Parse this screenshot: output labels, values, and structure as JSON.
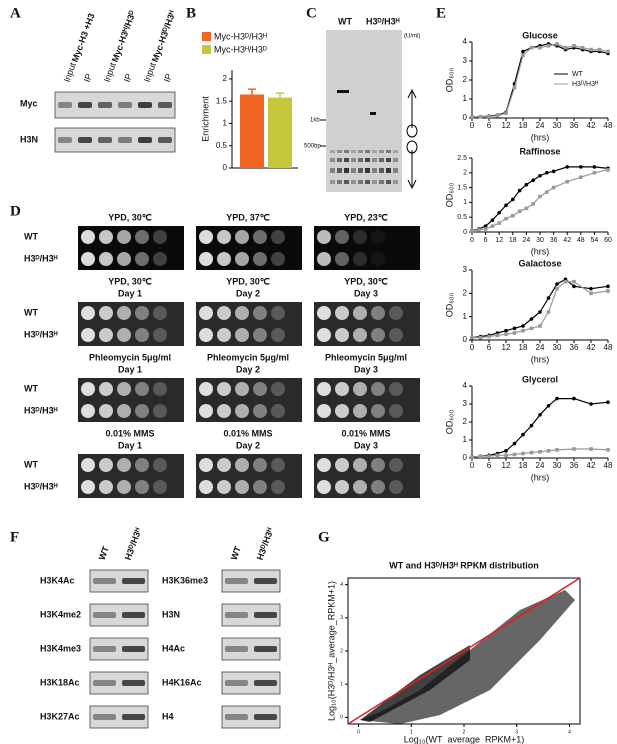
{
  "figure": {
    "panel_labels": [
      "A",
      "B",
      "C",
      "D",
      "E",
      "F",
      "G"
    ],
    "A": {
      "columns": [
        "Myc-H3 +H3",
        "Myc-H3ᴴ/H3ᴰ",
        "Myc-H3ᴰ/H3ᴴ"
      ],
      "lanes": [
        "Input",
        "IP",
        "Input",
        "IP",
        "Input",
        "IP"
      ],
      "rows": [
        "Myc",
        "H3N"
      ]
    },
    "C": {
      "groups": [
        "WT",
        "H3ᴰ/H3ᴴ"
      ],
      "unit": "(U/ml)",
      "markers": [
        "1kb",
        "500bp"
      ]
    },
    "D": {
      "row_labels": [
        "WT",
        "H3ᴰ/H3ᴴ"
      ],
      "groups": [
        {
          "titles": [
            "YPD, 30℃",
            "YPD, 37℃",
            "YPD, 23℃"
          ]
        },
        {
          "titles": [
            "YPD, 30℃",
            "YPD, 30℃",
            "YPD, 30℃"
          ],
          "days": [
            "Day 1",
            "Day 2",
            "Day 3"
          ]
        },
        {
          "titles": [
            "Phleomycin 5μg/ml",
            "Phleomycin 5μg/ml",
            "Phleomycin 5μg/ml"
          ],
          "days": [
            "Day 1",
            "Day 2",
            "Day 3"
          ]
        },
        {
          "titles": [
            "0.01% MMS",
            "0.01% MMS",
            "0.01% MMS"
          ],
          "days": [
            "Day 1",
            "Day 2",
            "Day 3"
          ]
        }
      ]
    },
    "F": {
      "columns": [
        "WT",
        "H3ᴰ/H3ᴴ"
      ],
      "left": [
        "H3K4Ac",
        "H3K4me2",
        "H3K4me3",
        "H3K18Ac",
        "H3K27Ac"
      ],
      "right": [
        "H3K36me3",
        "H3N",
        "H4Ac",
        "H4K16Ac",
        "H4"
      ]
    }
  },
  "chart_data": [
    {
      "type": "bar",
      "ylabel": "Enrichment",
      "ylim": [
        0,
        2.2
      ],
      "yticks": [
        0,
        0.5,
        1,
        1.5,
        2
      ],
      "series": [
        {
          "name": "Myc-H3ᴰ/H3ᴴ",
          "color": "#f26522",
          "values": [
            1.65
          ],
          "errors": [
            0.12
          ]
        },
        {
          "name": "Myc-H3ᴴ/H3ᴰ",
          "color": "#c5c83a",
          "values": [
            1.58
          ],
          "errors": [
            0.1
          ]
        }
      ]
    },
    {
      "type": "line",
      "title": "Glucose",
      "ylabel": "OD₆₀₀",
      "xlabel": "(hrs)",
      "xlim": [
        0,
        48
      ],
      "ylim": [
        0,
        4
      ],
      "xticks": [
        0,
        6,
        12,
        18,
        24,
        30,
        36,
        42,
        48
      ],
      "yticks": [
        0,
        1,
        2,
        3,
        4
      ],
      "x": [
        0,
        3,
        6,
        9,
        12,
        15,
        18,
        21,
        24,
        27,
        30,
        33,
        36,
        39,
        42,
        45,
        48
      ],
      "series": [
        {
          "name": "WT",
          "color": "#000000",
          "values": [
            0.05,
            0.07,
            0.1,
            0.15,
            0.3,
            1.8,
            3.5,
            3.7,
            3.8,
            3.9,
            3.8,
            3.6,
            3.7,
            3.6,
            3.5,
            3.5,
            3.4
          ]
        },
        {
          "name": "H3ᴰ/H3ᴴ",
          "color": "#999999",
          "values": [
            0.05,
            0.06,
            0.08,
            0.12,
            0.25,
            1.6,
            3.3,
            3.7,
            3.7,
            3.8,
            3.9,
            3.7,
            3.8,
            3.7,
            3.6,
            3.6,
            3.5
          ]
        }
      ]
    },
    {
      "type": "line",
      "title": "Raffinose",
      "ylabel": "OD₆₀₀",
      "xlabel": "(hrs)",
      "xlim": [
        0,
        60
      ],
      "ylim": [
        0,
        2.5
      ],
      "xticks": [
        0,
        6,
        12,
        18,
        24,
        30,
        36,
        42,
        48,
        54,
        60
      ],
      "yticks": [
        0,
        0.5,
        1,
        1.5,
        2,
        2.5
      ],
      "x": [
        0,
        3,
        6,
        9,
        12,
        15,
        18,
        21,
        24,
        27,
        30,
        33,
        36,
        42,
        48,
        54,
        60
      ],
      "series": [
        {
          "color": "#000000",
          "values": [
            0.05,
            0.1,
            0.2,
            0.4,
            0.65,
            0.9,
            1.1,
            1.4,
            1.6,
            1.75,
            1.9,
            2.0,
            2.05,
            2.2,
            2.2,
            2.2,
            2.15
          ]
        },
        {
          "color": "#999999",
          "values": [
            0.05,
            0.07,
            0.1,
            0.2,
            0.3,
            0.45,
            0.55,
            0.7,
            0.8,
            0.95,
            1.2,
            1.35,
            1.5,
            1.7,
            1.85,
            2.0,
            2.1
          ]
        }
      ]
    },
    {
      "type": "line",
      "title": "Galactose",
      "ylabel": "OD₆₀₀",
      "xlabel": "(hrs)",
      "xlim": [
        0,
        48
      ],
      "ylim": [
        0,
        3
      ],
      "xticks": [
        0,
        6,
        12,
        18,
        24,
        30,
        36,
        42,
        48
      ],
      "yticks": [
        0,
        1,
        2,
        3
      ],
      "x": [
        0,
        3,
        6,
        9,
        12,
        15,
        18,
        21,
        24,
        27,
        30,
        33,
        36,
        42,
        48
      ],
      "series": [
        {
          "color": "#000000",
          "values": [
            0.1,
            0.15,
            0.2,
            0.3,
            0.4,
            0.5,
            0.6,
            0.9,
            1.2,
            1.8,
            2.4,
            2.6,
            2.3,
            2.2,
            2.3
          ]
        },
        {
          "color": "#999999",
          "values": [
            0.1,
            0.1,
            0.15,
            0.2,
            0.25,
            0.3,
            0.4,
            0.5,
            0.6,
            1.2,
            2.2,
            2.5,
            2.5,
            2.0,
            2.1
          ]
        }
      ]
    },
    {
      "type": "line",
      "title": "Glycerol",
      "ylabel": "OD₆₀₀",
      "xlabel": "(hrs)",
      "xlim": [
        0,
        48
      ],
      "ylim": [
        0,
        4
      ],
      "xticks": [
        0,
        6,
        12,
        18,
        24,
        30,
        36,
        42,
        48
      ],
      "yticks": [
        0,
        1,
        2,
        3,
        4
      ],
      "x": [
        0,
        3,
        6,
        9,
        12,
        15,
        18,
        21,
        24,
        27,
        30,
        36,
        42,
        48
      ],
      "series": [
        {
          "color": "#000000",
          "values": [
            0.05,
            0.1,
            0.15,
            0.25,
            0.4,
            0.8,
            1.3,
            1.8,
            2.4,
            2.9,
            3.3,
            3.3,
            3.0,
            3.1
          ]
        },
        {
          "color": "#999999",
          "values": [
            0.05,
            0.1,
            0.1,
            0.15,
            0.15,
            0.2,
            0.25,
            0.3,
            0.35,
            0.4,
            0.45,
            0.5,
            0.5,
            0.45
          ]
        }
      ]
    },
    {
      "type": "scatter",
      "title": "WT and H3ᴰ/H3ᴴ RPKM distribution",
      "xlabel": "Log₁₀(WT_average_RPKM+1)",
      "ylabel": "Log₁₀(H3ᴰ/H3ᴴ_average_RPKM+1)",
      "xlim": [
        -0.2,
        4.2
      ],
      "ylim": [
        -0.2,
        4.2
      ],
      "xticks": [
        0,
        1,
        2,
        3,
        4
      ],
      "yticks": [
        0,
        1,
        2,
        3,
        4
      ],
      "line_color": "#e02020"
    }
  ]
}
